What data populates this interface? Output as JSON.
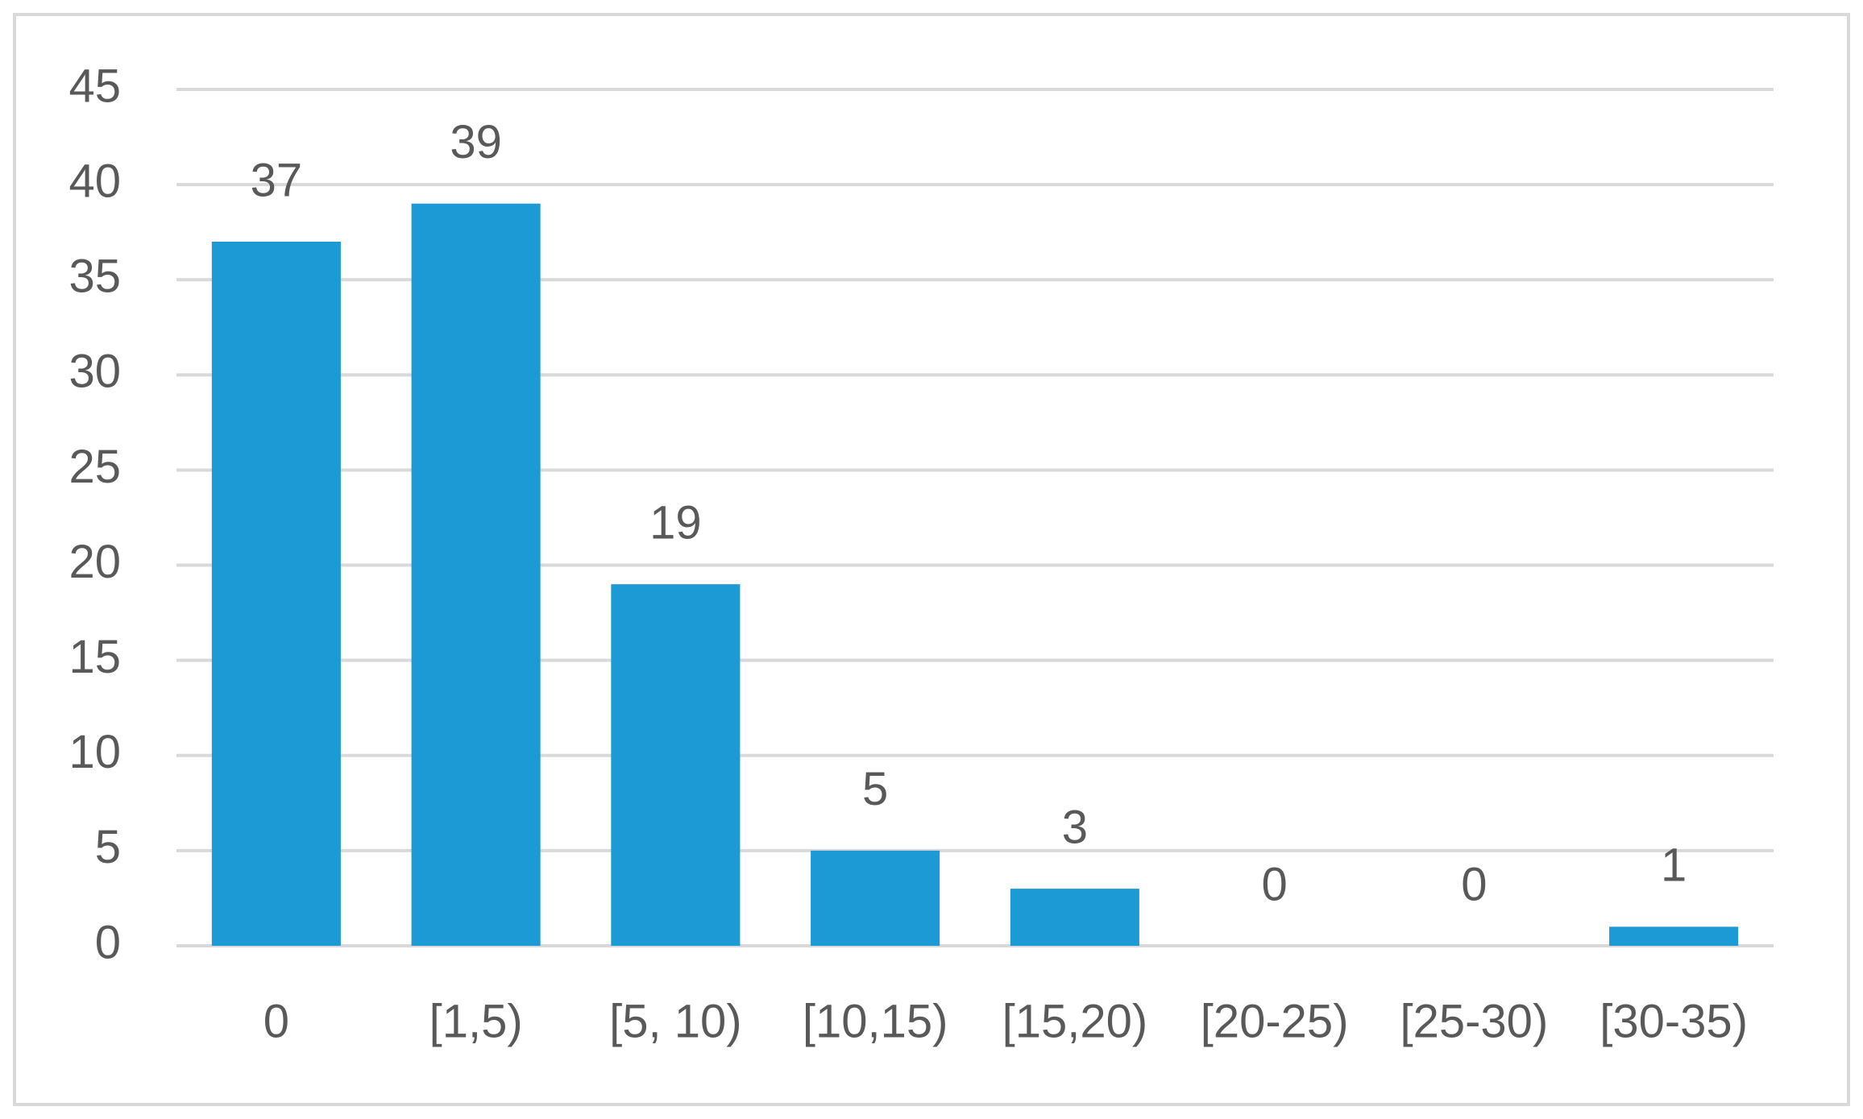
{
  "chart_data": {
    "type": "bar",
    "categories": [
      "0",
      "[1,5)",
      "[5, 10)",
      "[10,15)",
      "[15,20)",
      "[20-25)",
      "[25-30)",
      "[30-35)"
    ],
    "values": [
      37,
      39,
      19,
      5,
      3,
      0,
      0,
      1
    ],
    "color": "#1b9ad6",
    "ylim": [
      0,
      45
    ],
    "yticks": [
      0,
      5,
      10,
      15,
      20,
      25,
      30,
      35,
      40,
      45
    ],
    "grid": true
  }
}
